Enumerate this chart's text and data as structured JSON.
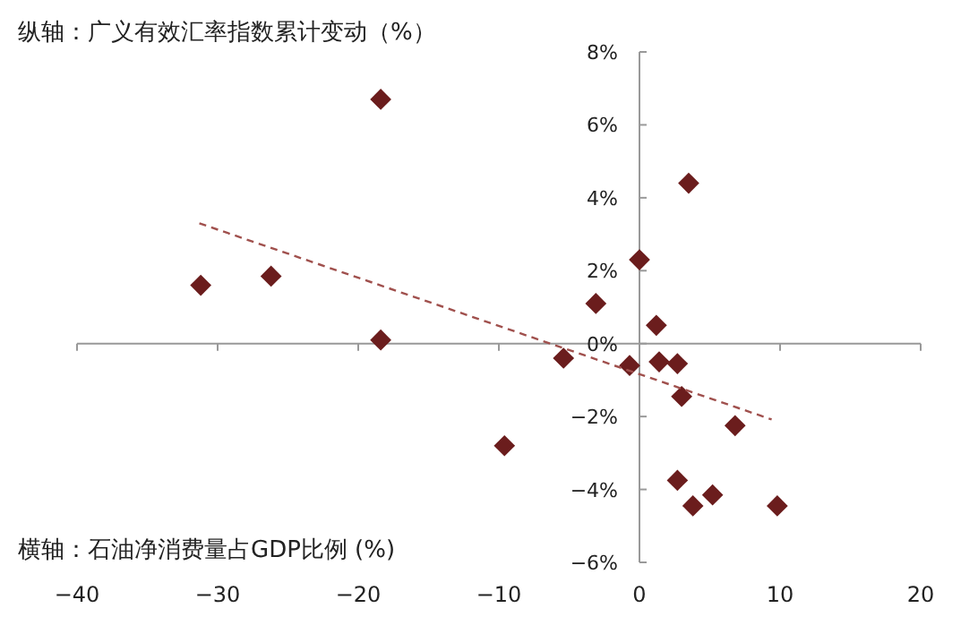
{
  "chart_data": {
    "type": "scatter",
    "xlabel": "横轴：石油净消费量占GDP比例 (%)",
    "ylabel": "纵轴：广义有效汇率指数累计变动（%）",
    "xlim": [
      -40,
      20
    ],
    "xticks": [
      {
        "value": -40,
        "label": "−40"
      },
      {
        "value": -30,
        "label": "−30"
      },
      {
        "value": -20,
        "label": "−20"
      },
      {
        "value": -10,
        "label": "−10"
      },
      0,
      10,
      20
    ],
    "ylim": [
      -6,
      8
    ],
    "yticks": [
      {
        "value": -6,
        "label": "−6%"
      },
      {
        "value": -4,
        "label": "−4%"
      },
      {
        "value": -2,
        "label": "−2%"
      },
      {
        "value": 0,
        "label": "0%"
      },
      {
        "value": 2,
        "label": "2%"
      },
      {
        "value": 4,
        "label": "4%"
      },
      {
        "value": 6,
        "label": "6%"
      },
      {
        "value": 8,
        "label": "8%"
      }
    ],
    "marker": "diamond",
    "series": [
      {
        "color": "#6b1d1d",
        "x": [
          -31.2,
          -26.2,
          -18.4,
          -18.4,
          -9.6,
          -5.4,
          -3.1,
          -0.7,
          0.0,
          1.2,
          1.4,
          2.7,
          3.0,
          3.5,
          6.8,
          2.7,
          3.8,
          5.2,
          9.8
        ],
        "values": [
          1.6,
          1.85,
          6.7,
          0.1,
          -2.8,
          -0.4,
          1.1,
          -0.6,
          2.3,
          0.5,
          -0.5,
          -0.55,
          -1.45,
          4.4,
          -2.25,
          -3.75,
          -4.45,
          -4.15,
          -4.45
        ]
      },
      {
        "type": "line",
        "color": "#a0504d",
        "marker": "none",
        "line_style": "dashed",
        "x": [
          -31.3,
          9.4
        ],
        "values": [
          3.3,
          -2.08
        ]
      }
    ]
  }
}
